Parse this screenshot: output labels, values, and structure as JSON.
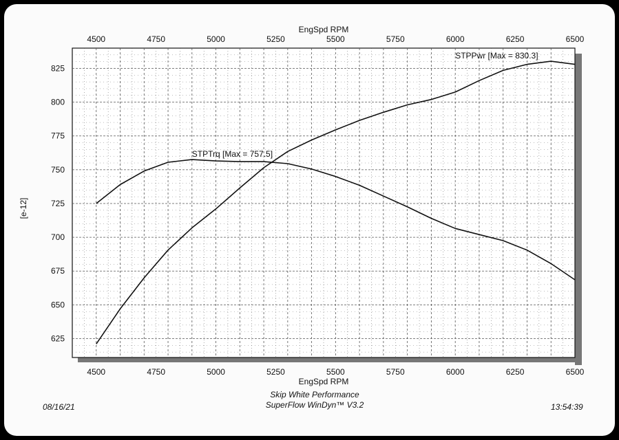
{
  "footer": {
    "date": "08/16/21",
    "time": "13:54:39",
    "company": "Skip White Performance",
    "software": "SuperFlow WinDyn™ V3.2"
  },
  "colors": {
    "background": "#fbfbfb",
    "frame": "#000000",
    "line": "#111111",
    "grid": "#555555",
    "shadow": "#777777"
  },
  "chart_data": {
    "type": "line",
    "xlabel_top": "EngSpd RPM",
    "xlabel": "EngSpd RPM",
    "ylabel": "[e-12]",
    "xlim": [
      4400,
      6500
    ],
    "ylim": [
      611,
      840
    ],
    "x_ticks": [
      4500,
      4750,
      5000,
      5250,
      5500,
      5750,
      6000,
      6250,
      6500
    ],
    "y_ticks": [
      625,
      650,
      675,
      700,
      725,
      750,
      775,
      800,
      825
    ],
    "grid": true,
    "series": [
      {
        "name": "STPTrq",
        "annotation": "STPTrq [Max = 757.5]",
        "x": [
          4500,
          4600,
          4700,
          4800,
          4900,
          5000,
          5100,
          5200,
          5300,
          5400,
          5500,
          5600,
          5700,
          5800,
          5900,
          6000,
          6100,
          6200,
          6300,
          6400,
          6500
        ],
        "y": [
          725,
          739,
          749,
          755.5,
          757.5,
          756.5,
          756,
          756,
          754.5,
          750.5,
          745,
          738.5,
          730.5,
          722.5,
          714,
          706.5,
          702,
          697.5,
          690.5,
          680.5,
          668.5
        ]
      },
      {
        "name": "STPPwr",
        "annotation": "STPPwr [Max = 830.3]",
        "x": [
          4500,
          4600,
          4700,
          4800,
          4900,
          5000,
          5100,
          5200,
          5300,
          5400,
          5500,
          5600,
          5700,
          5800,
          5900,
          6000,
          6100,
          6200,
          6300,
          6400,
          6500
        ],
        "y": [
          621,
          647,
          670,
          690.5,
          707,
          721,
          736.5,
          751.5,
          763.5,
          772,
          779.5,
          786.5,
          792.5,
          798,
          802,
          807.5,
          816,
          823.5,
          828,
          830.3,
          828
        ]
      }
    ]
  }
}
